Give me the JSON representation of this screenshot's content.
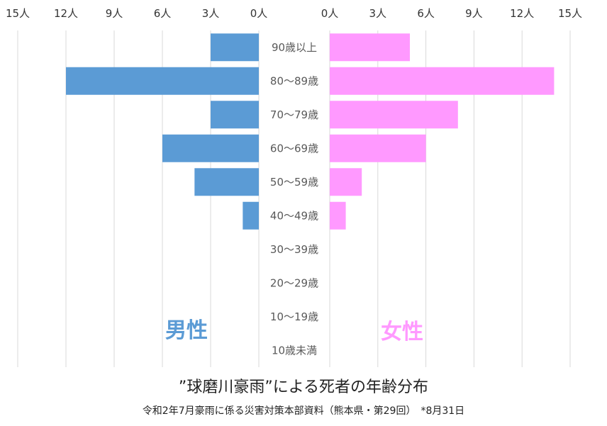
{
  "chart_data": {
    "type": "bar",
    "orientation": "horizontal",
    "title": "”球磨川豪雨”による死者の年齢分布",
    "subtitle": "令和2年7月豪雨に係る災害対策本部資料（熊本県・第29回）　*8月31日",
    "categories": [
      "90歳以上",
      "80～89歳",
      "70～79歳",
      "60～69歳",
      "50～59歳",
      "40～49歳",
      "30～39歳",
      "20～29歳",
      "10～19歳",
      "10歳未満"
    ],
    "series": [
      {
        "name": "男性",
        "color": "#5b9bd5",
        "values": [
          3,
          12,
          3,
          6,
          4,
          1,
          0,
          0,
          0,
          0
        ]
      },
      {
        "name": "女性",
        "color": "#ff99ff",
        "values": [
          5,
          14,
          8,
          6,
          2,
          1,
          0,
          0,
          0,
          0
        ]
      }
    ],
    "left_axis_ticks": [
      "15人",
      "12人",
      "9人",
      "6人",
      "3人",
      "0人"
    ],
    "right_axis_ticks": [
      "0人",
      "3人",
      "6人",
      "9人",
      "12人",
      "15人"
    ],
    "xlim": [
      0,
      15
    ],
    "grid": true
  }
}
